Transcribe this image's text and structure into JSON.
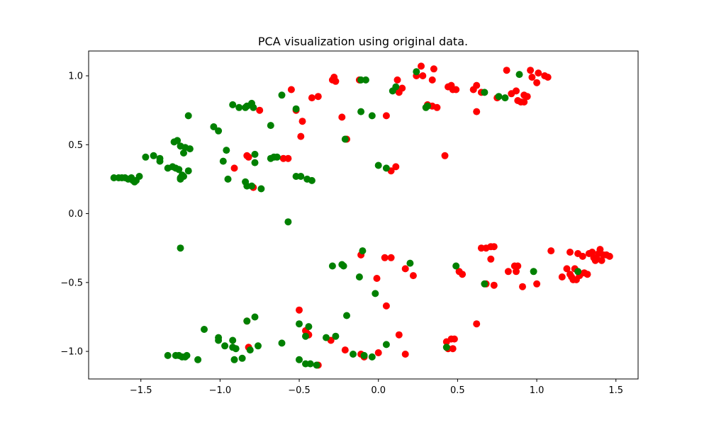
{
  "chart_data": {
    "type": "scatter",
    "title": "PCA visualization using original data.",
    "xlabel": "",
    "ylabel": "",
    "xlim": [
      -1.83,
      1.64
    ],
    "ylim": [
      -1.2,
      1.18
    ],
    "xticks": [
      -1.5,
      -1.0,
      -0.5,
      0.0,
      0.5,
      1.0,
      1.5
    ],
    "xtick_labels": [
      "−1.5",
      "−1.0",
      "−0.5",
      "0.0",
      "0.5",
      "1.0",
      "1.5"
    ],
    "yticks": [
      -1.0,
      -0.5,
      0.0,
      0.5,
      1.0
    ],
    "ytick_labels": [
      "−1.0",
      "−0.5",
      "0.0",
      "0.5",
      "1.0"
    ],
    "grid": false,
    "series": [
      {
        "color": "#ff0000",
        "points": [
          [
            -0.28,
            0.99
          ],
          [
            -0.29,
            0.97
          ],
          [
            -0.27,
            0.96
          ],
          [
            -0.12,
            0.97
          ],
          [
            -0.55,
            0.9
          ],
          [
            -0.52,
            0.75
          ],
          [
            -0.38,
            0.85
          ],
          [
            -0.42,
            0.84
          ],
          [
            -0.75,
            0.75
          ],
          [
            -0.23,
            0.7
          ],
          [
            -0.2,
            0.54
          ],
          [
            -0.48,
            0.67
          ],
          [
            -0.49,
            0.56
          ],
          [
            -0.83,
            0.42
          ],
          [
            -0.82,
            0.41
          ],
          [
            -0.57,
            0.4
          ],
          [
            -0.6,
            0.4
          ],
          [
            -0.91,
            0.33
          ],
          [
            -0.79,
            0.19
          ],
          [
            0.05,
            0.71
          ],
          [
            0.12,
            0.97
          ],
          [
            0.15,
            0.91
          ],
          [
            0.13,
            0.88
          ],
          [
            0.24,
            1.0
          ],
          [
            0.27,
            1.07
          ],
          [
            0.28,
            1.0
          ],
          [
            0.35,
            1.05
          ],
          [
            0.34,
            0.97
          ],
          [
            0.31,
            0.79
          ],
          [
            0.34,
            0.78
          ],
          [
            0.37,
            0.77
          ],
          [
            0.44,
            0.92
          ],
          [
            0.46,
            0.93
          ],
          [
            0.47,
            0.9
          ],
          [
            0.49,
            0.9
          ],
          [
            0.42,
            0.42
          ],
          [
            0.6,
            0.9
          ],
          [
            0.62,
            0.93
          ],
          [
            0.65,
            0.88
          ],
          [
            0.62,
            0.74
          ],
          [
            0.75,
            0.84
          ],
          [
            0.81,
            1.04
          ],
          [
            0.84,
            0.87
          ],
          [
            0.88,
            0.82
          ],
          [
            0.9,
            0.81
          ],
          [
            0.92,
            0.81
          ],
          [
            0.87,
            0.89
          ],
          [
            0.92,
            0.86
          ],
          [
            0.94,
            0.85
          ],
          [
            0.96,
            1.04
          ],
          [
            0.97,
            0.99
          ],
          [
            1.01,
            1.02
          ],
          [
            1.05,
            1.0
          ],
          [
            1.07,
            0.99
          ],
          [
            1.0,
            0.95
          ],
          [
            0.08,
            0.31
          ],
          [
            0.11,
            0.34
          ],
          [
            -0.11,
            -0.3
          ],
          [
            0.08,
            -0.32
          ],
          [
            0.04,
            -0.32
          ],
          [
            -0.01,
            -0.47
          ],
          [
            0.17,
            -0.4
          ],
          [
            0.22,
            -0.45
          ],
          [
            0.51,
            -0.42
          ],
          [
            0.53,
            -0.44
          ],
          [
            0.65,
            -0.25
          ],
          [
            0.68,
            -0.25
          ],
          [
            0.71,
            -0.24
          ],
          [
            0.73,
            -0.24
          ],
          [
            0.71,
            -0.33
          ],
          [
            0.68,
            -0.51
          ],
          [
            0.73,
            -0.52
          ],
          [
            0.82,
            -0.42
          ],
          [
            0.86,
            -0.38
          ],
          [
            0.88,
            -0.38
          ],
          [
            0.87,
            -0.42
          ],
          [
            0.91,
            -0.53
          ],
          [
            1.0,
            -0.51
          ],
          [
            1.09,
            -0.27
          ],
          [
            1.16,
            -0.46
          ],
          [
            1.19,
            -0.4
          ],
          [
            1.21,
            -0.28
          ],
          [
            1.21,
            -0.44
          ],
          [
            1.22,
            -0.46
          ],
          [
            1.24,
            -0.4
          ],
          [
            1.25,
            -0.48
          ],
          [
            1.26,
            -0.29
          ],
          [
            1.27,
            -0.45
          ],
          [
            1.29,
            -0.31
          ],
          [
            1.3,
            -0.43
          ],
          [
            1.32,
            -0.44
          ],
          [
            1.33,
            -0.29
          ],
          [
            1.35,
            -0.28
          ],
          [
            1.36,
            -0.32
          ],
          [
            1.37,
            -0.34
          ],
          [
            1.39,
            -0.29
          ],
          [
            1.4,
            -0.26
          ],
          [
            1.41,
            -0.34
          ],
          [
            1.42,
            -0.3
          ],
          [
            1.44,
            -0.3
          ],
          [
            1.46,
            -0.31
          ],
          [
            1.38,
            -0.33
          ],
          [
            1.23,
            -0.48
          ],
          [
            0.05,
            -0.67
          ],
          [
            0.13,
            -0.88
          ],
          [
            0.17,
            -1.02
          ],
          [
            0.0,
            -1.01
          ],
          [
            -0.09,
            -1.04
          ],
          [
            -0.11,
            -1.02
          ],
          [
            -0.21,
            -0.99
          ],
          [
            -0.3,
            -0.92
          ],
          [
            -0.38,
            -1.1
          ],
          [
            -0.45,
            -0.87
          ],
          [
            -0.44,
            -0.88
          ],
          [
            -0.46,
            -0.85
          ],
          [
            -0.5,
            -0.7
          ],
          [
            -0.82,
            -0.97
          ],
          [
            -0.83,
            -0.78
          ],
          [
            0.43,
            -0.93
          ],
          [
            0.46,
            -0.91
          ],
          [
            0.48,
            -0.91
          ],
          [
            0.44,
            -0.98
          ],
          [
            0.47,
            -0.98
          ],
          [
            0.62,
            -0.8
          ]
        ]
      },
      {
        "color": "#008000",
        "points": [
          [
            -1.67,
            0.26
          ],
          [
            -1.64,
            0.26
          ],
          [
            -1.62,
            0.26
          ],
          [
            -1.6,
            0.26
          ],
          [
            -1.58,
            0.25
          ],
          [
            -1.56,
            0.26
          ],
          [
            -1.55,
            0.24
          ],
          [
            -1.54,
            0.23
          ],
          [
            -1.53,
            0.24
          ],
          [
            -1.51,
            0.27
          ],
          [
            -1.47,
            0.41
          ],
          [
            -1.42,
            0.42
          ],
          [
            -1.38,
            0.4
          ],
          [
            -1.38,
            0.38
          ],
          [
            -1.33,
            0.33
          ],
          [
            -1.3,
            0.34
          ],
          [
            -1.28,
            0.33
          ],
          [
            -1.26,
            0.32
          ],
          [
            -1.25,
            0.26
          ],
          [
            -1.24,
            0.28
          ],
          [
            -1.23,
            0.27
          ],
          [
            -1.25,
            0.25
          ],
          [
            -1.29,
            0.52
          ],
          [
            -1.27,
            0.53
          ],
          [
            -1.25,
            0.49
          ],
          [
            -1.22,
            0.48
          ],
          [
            -1.23,
            0.44
          ],
          [
            -1.2,
            0.31
          ],
          [
            -1.19,
            0.47
          ],
          [
            -1.2,
            0.71
          ],
          [
            -1.04,
            0.63
          ],
          [
            -1.01,
            0.6
          ],
          [
            -0.98,
            0.38
          ],
          [
            -0.96,
            0.46
          ],
          [
            -0.95,
            0.25
          ],
          [
            -0.92,
            0.79
          ],
          [
            -0.88,
            0.77
          ],
          [
            -0.84,
            0.77
          ],
          [
            -0.83,
            0.78
          ],
          [
            -0.8,
            0.8
          ],
          [
            -0.79,
            0.77
          ],
          [
            -0.78,
            0.43
          ],
          [
            -0.78,
            0.37
          ],
          [
            -0.84,
            0.23
          ],
          [
            -0.83,
            0.2
          ],
          [
            -0.8,
            0.2
          ],
          [
            -0.74,
            0.18
          ],
          [
            -0.61,
            0.86
          ],
          [
            -0.52,
            0.76
          ],
          [
            -0.68,
            0.64
          ],
          [
            -0.68,
            0.4
          ],
          [
            -0.66,
            0.41
          ],
          [
            -0.64,
            0.41
          ],
          [
            -0.52,
            0.27
          ],
          [
            -0.49,
            0.27
          ],
          [
            -0.45,
            0.25
          ],
          [
            -0.42,
            0.24
          ],
          [
            -0.57,
            -0.06
          ],
          [
            -1.25,
            -0.25
          ],
          [
            -0.21,
            0.54
          ],
          [
            -0.11,
            0.97
          ],
          [
            -0.08,
            0.97
          ],
          [
            -0.11,
            0.74
          ],
          [
            -0.04,
            0.71
          ],
          [
            0.0,
            0.35
          ],
          [
            0.05,
            0.33
          ],
          [
            0.09,
            0.89
          ],
          [
            0.11,
            0.92
          ],
          [
            0.24,
            1.03
          ],
          [
            0.31,
            0.78
          ],
          [
            0.3,
            0.77
          ],
          [
            0.67,
            0.88
          ],
          [
            0.76,
            0.85
          ],
          [
            0.8,
            0.84
          ],
          [
            0.89,
            1.01
          ],
          [
            -0.29,
            -0.38
          ],
          [
            -0.23,
            -0.37
          ],
          [
            -0.22,
            -0.38
          ],
          [
            -0.12,
            -0.46
          ],
          [
            -0.1,
            -0.27
          ],
          [
            0.2,
            -0.36
          ],
          [
            0.49,
            -0.38
          ],
          [
            0.67,
            -0.51
          ],
          [
            0.98,
            -0.42
          ],
          [
            1.26,
            -0.42
          ],
          [
            -0.2,
            -0.74
          ],
          [
            -0.02,
            -0.58
          ],
          [
            -0.16,
            -1.02
          ],
          [
            -0.09,
            -1.03
          ],
          [
            -0.04,
            -1.04
          ],
          [
            0.05,
            -0.95
          ],
          [
            -0.27,
            -0.89
          ],
          [
            -0.33,
            -0.9
          ],
          [
            -0.46,
            -0.89
          ],
          [
            -0.44,
            -0.82
          ],
          [
            -0.5,
            -0.8
          ],
          [
            -0.5,
            -1.06
          ],
          [
            -0.46,
            -1.09
          ],
          [
            -0.43,
            -1.09
          ],
          [
            -0.39,
            -1.1
          ],
          [
            -1.33,
            -1.03
          ],
          [
            -1.28,
            -1.03
          ],
          [
            -1.26,
            -1.03
          ],
          [
            -1.24,
            -1.04
          ],
          [
            -1.22,
            -1.04
          ],
          [
            -1.21,
            -1.03
          ],
          [
            -1.14,
            -1.06
          ],
          [
            -1.1,
            -0.84
          ],
          [
            -1.01,
            -0.9
          ],
          [
            -1.01,
            -0.92
          ],
          [
            -0.97,
            -0.96
          ],
          [
            -0.92,
            -0.97
          ],
          [
            -0.92,
            -0.92
          ],
          [
            -0.91,
            -1.06
          ],
          [
            -0.9,
            -0.98
          ],
          [
            -0.86,
            -1.05
          ],
          [
            -0.83,
            -0.78
          ],
          [
            -0.81,
            -0.99
          ],
          [
            -0.78,
            -0.75
          ],
          [
            -0.76,
            -0.96
          ],
          [
            -0.61,
            -0.94
          ],
          [
            0.43,
            -0.97
          ]
        ]
      }
    ]
  }
}
